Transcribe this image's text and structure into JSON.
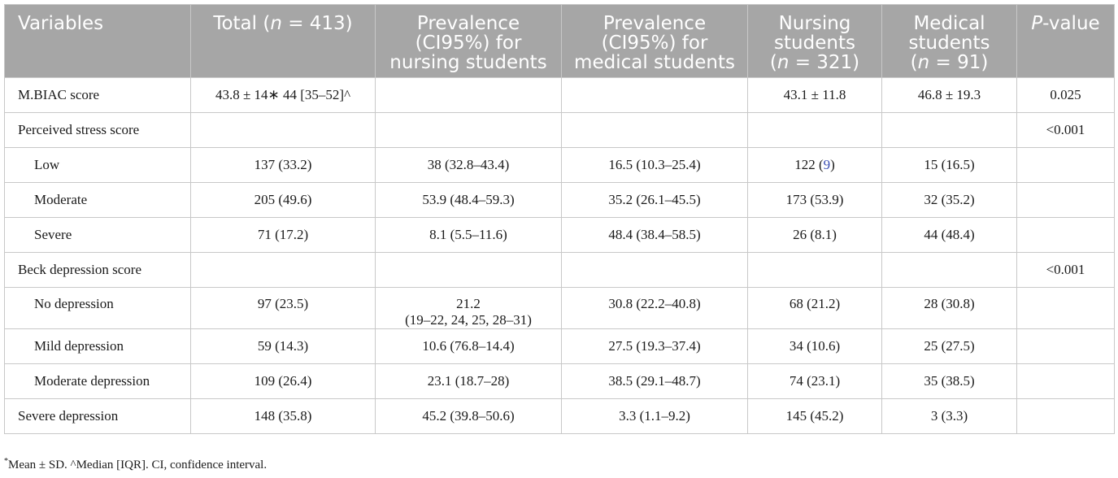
{
  "table": {
    "headers": {
      "variables": "Variables",
      "total_pre": "Total (",
      "total_n": "n",
      "total_post": " = 413)",
      "prev_nursing_l1": "Prevalence",
      "prev_nursing_l2": "(CI95%) for",
      "prev_nursing_l3": "nursing students",
      "prev_medical_l1": "Prevalence",
      "prev_medical_l2": "(CI95%) for",
      "prev_medical_l3": "medical students",
      "nursing_l1": "Nursing",
      "nursing_l2": "students",
      "nursing_l3_pre": "(",
      "nursing_l3_n": "n",
      "nursing_l3_post": " = 321)",
      "medical_l1": "Medical",
      "medical_l2": "students",
      "medical_l3_pre": "(",
      "medical_l3_n": "n",
      "medical_l3_post": " = 91)",
      "pvalue_p": "P",
      "pvalue_rest": "-value"
    },
    "rows": [
      {
        "label": "M.BIAC score",
        "total": "43.8 ± 14∗ 44 [35–52]^",
        "prev_nursing": "",
        "prev_medical": "",
        "nursing": "43.1 ± 11.8",
        "medical": "46.8 ± 19.3",
        "p": "0.025"
      },
      {
        "label": "Perceived stress score",
        "total": "",
        "prev_nursing": "",
        "prev_medical": "",
        "nursing": "",
        "medical": "",
        "p": "<0.001"
      },
      {
        "label": "Low",
        "total": "137 (33.2)",
        "prev_nursing": "38 (32.8–43.4)",
        "prev_medical": "16.5 (10.3–25.4)",
        "nursing_pre": "122 (",
        "nursing_link": "9",
        "nursing_post": ")",
        "medical": "15 (16.5)",
        "p": ""
      },
      {
        "label": "Moderate",
        "total": "205 (49.6)",
        "prev_nursing": "53.9 (48.4–59.3)",
        "prev_medical": "35.2 (26.1–45.5)",
        "nursing": "173 (53.9)",
        "medical": "32 (35.2)",
        "p": ""
      },
      {
        "label": "Severe",
        "total": "71 (17.2)",
        "prev_nursing": "8.1 (5.5–11.6)",
        "prev_medical": "48.4 (38.4–58.5)",
        "nursing": "26 (8.1)",
        "medical": "44 (48.4)",
        "p": ""
      },
      {
        "label": "Beck depression score",
        "total": "",
        "prev_nursing": "",
        "prev_medical": "",
        "nursing": "",
        "medical": "",
        "p": "<0.001"
      },
      {
        "label": "No depression",
        "total": "97 (23.5)",
        "prev_nursing_l1": "21.2",
        "prev_nursing_l2": "(19–22, 24, 25, 28–31)",
        "prev_medical": "30.8 (22.2–40.8)",
        "nursing": "68 (21.2)",
        "medical": "28 (30.8)",
        "p": ""
      },
      {
        "label": "Mild depression",
        "total": "59 (14.3)",
        "prev_nursing": "10.6 (76.8–14.4)",
        "prev_medical": "27.5 (19.3–37.4)",
        "nursing": "34 (10.6)",
        "medical": "25 (27.5)",
        "p": ""
      },
      {
        "label": "Moderate depression",
        "total": "109 (26.4)",
        "prev_nursing": "23.1 (18.7–28)",
        "prev_medical": "38.5 (29.1–48.7)",
        "nursing": "74 (23.1)",
        "medical": "35 (38.5)",
        "p": ""
      },
      {
        "label": "Severe depression",
        "total": "148 (35.8)",
        "prev_nursing": "45.2 (39.8–50.6)",
        "prev_medical": "3.3 (1.1–9.2)",
        "nursing": "145 (45.2)",
        "medical": "3 (3.3)",
        "p": ""
      }
    ]
  },
  "footnote": {
    "sup": "*",
    "text": "Mean ± SD. ^Median [IQR]. CI, confidence interval."
  }
}
